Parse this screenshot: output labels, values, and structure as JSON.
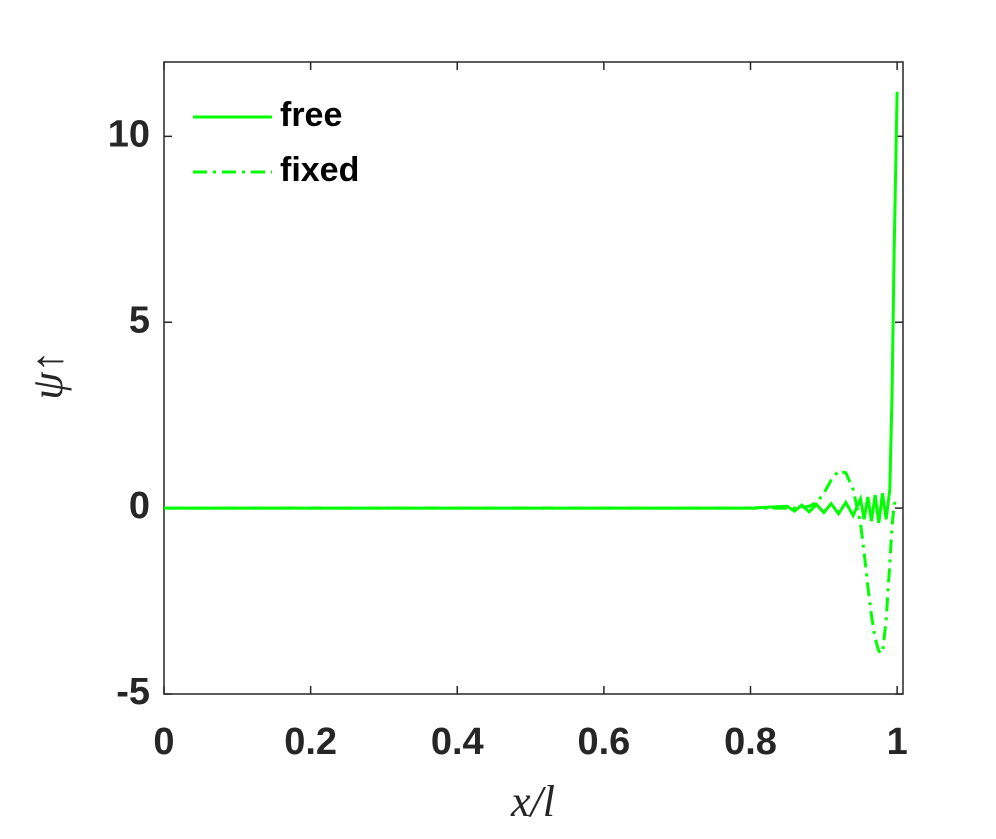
{
  "chart_data": {
    "type": "line",
    "x_label": "x/l",
    "y_label": "ψ↑",
    "x": [
      0,
      0.2,
      0.4,
      0.6,
      0.8,
      0.85,
      0.86,
      0.87,
      0.88,
      0.89,
      0.9,
      0.91,
      0.92,
      0.93,
      0.94,
      0.95,
      0.955,
      0.96,
      0.965,
      0.97,
      0.975,
      0.98,
      0.985,
      0.99,
      0.993,
      0.996,
      1.0
    ],
    "series": [
      {
        "name": "free",
        "color": "#00ff00",
        "dash": "solid",
        "values": [
          0,
          0,
          0,
          0,
          0,
          0.05,
          -0.08,
          0.08,
          -0.1,
          0.1,
          -0.12,
          0.12,
          -0.15,
          0.15,
          -0.2,
          0.25,
          -0.3,
          0.3,
          -0.35,
          0.35,
          -0.4,
          0.4,
          -0.3,
          0.5,
          3,
          7,
          11.2
        ]
      },
      {
        "name": "fixed",
        "color": "#00ff00",
        "dash": "dashdot",
        "values": [
          0,
          0,
          0,
          0,
          0,
          0,
          0,
          0.02,
          0.05,
          0.15,
          0.4,
          0.75,
          1.0,
          0.95,
          0.5,
          -0.4,
          -1.2,
          -2.1,
          -2.9,
          -3.5,
          -3.85,
          -3.9,
          -3.0,
          -1.5,
          -0.5,
          0.1,
          0.25
        ]
      }
    ],
    "xlim": [
      0,
      1.008
    ],
    "ylim": [
      -5,
      12
    ],
    "xticks": [
      0,
      0.2,
      0.4,
      0.6,
      0.8,
      1
    ],
    "yticks": [
      -5,
      0,
      5,
      10
    ],
    "legend": "upper-left",
    "grid": false
  }
}
